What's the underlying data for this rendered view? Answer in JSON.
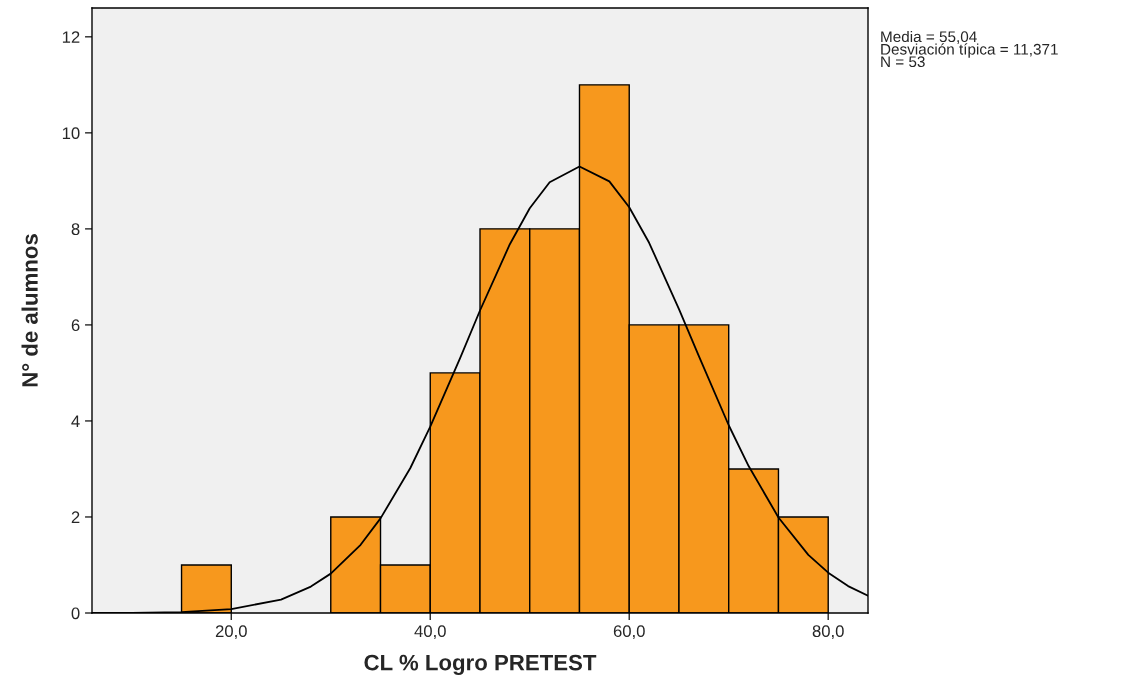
{
  "chart_data": {
    "type": "histogram",
    "xlabel": "CL % Logro PRETEST",
    "ylabel": "N° de alumnos",
    "bins": [
      15,
      20,
      25,
      30,
      35,
      40,
      45,
      50,
      55,
      60,
      65,
      70,
      75,
      80
    ],
    "series": [
      {
        "color": "#f7981d",
        "values": [
          1,
          0,
          0,
          2,
          1,
          5,
          8,
          8,
          11,
          6,
          6,
          3,
          2
        ]
      },
      {
        "type": "line",
        "color": "#000000",
        "x": [
          6,
          10,
          15,
          20,
          25,
          28,
          30,
          33,
          35,
          38,
          40,
          43,
          45,
          48,
          50,
          52,
          55,
          58,
          60,
          62,
          65,
          67,
          70,
          72,
          75,
          78,
          80,
          82,
          84
        ],
        "values": [
          0.0,
          0.0,
          0.02,
          0.08,
          0.28,
          0.55,
          0.82,
          1.42,
          1.97,
          3.02,
          3.88,
          5.31,
          6.3,
          7.68,
          8.43,
          8.97,
          9.3,
          8.99,
          8.45,
          7.71,
          6.33,
          5.35,
          3.91,
          3.06,
          1.99,
          1.21,
          0.84,
          0.56,
          0.36
        ]
      }
    ],
    "xlim": [
      6,
      84
    ],
    "ylim": [
      0,
      12.6
    ],
    "xticks": [
      {
        "value": 20,
        "label": "20,0"
      },
      {
        "value": 40,
        "label": "40,0"
      },
      {
        "value": 60,
        "label": "60,0"
      },
      {
        "value": 80,
        "label": "80,0"
      }
    ],
    "yticks": [
      0,
      2,
      4,
      6,
      8,
      10,
      12
    ],
    "annotations": [
      "Media = 55,04",
      "Desviación típica = 11,371",
      "N = 53"
    ]
  }
}
